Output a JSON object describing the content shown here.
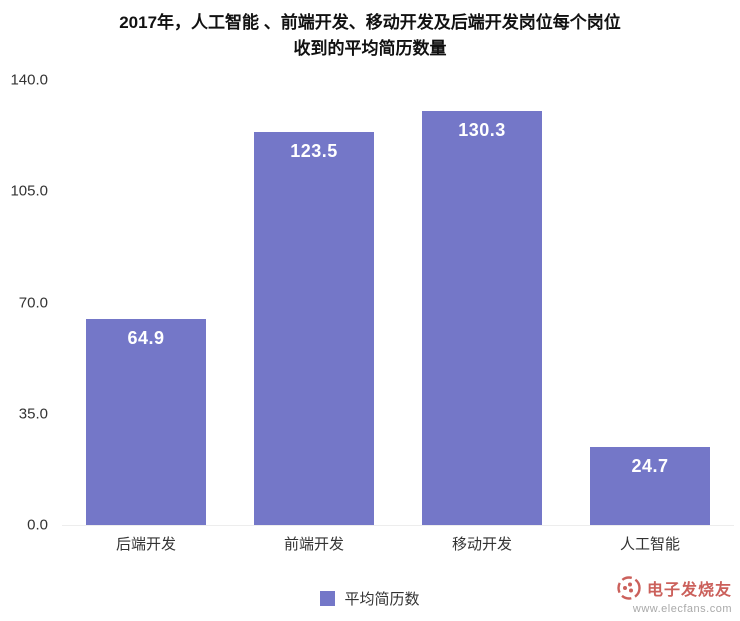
{
  "chart_data": {
    "type": "bar",
    "title": "2017年，人工智能 、前端开发、移动开发及后端开发岗位每个岗位收到的平均简历数量",
    "title_lines": [
      "2017年，人工智能 、前端开发、移动开发及后端开发岗位每个岗位",
      "收到的平均简历数量"
    ],
    "categories": [
      "后端开发",
      "前端开发",
      "移动开发",
      "人工智能"
    ],
    "values": [
      64.9,
      123.5,
      130.3,
      24.7
    ],
    "series_name": "平均简历数",
    "xlabel": "",
    "ylabel": "",
    "ylim": [
      0,
      140
    ],
    "ytick_labels": [
      "140.0",
      "105.0",
      "70.0",
      "35.0",
      "0.0"
    ],
    "grid": false,
    "legend_position": "bottom",
    "bar_color": "#7477c8",
    "value_label_color": "#ffffff"
  },
  "watermark": {
    "brand": "电子发烧友",
    "url": "www.elecfans.com",
    "brand_color": "#c2453f"
  }
}
